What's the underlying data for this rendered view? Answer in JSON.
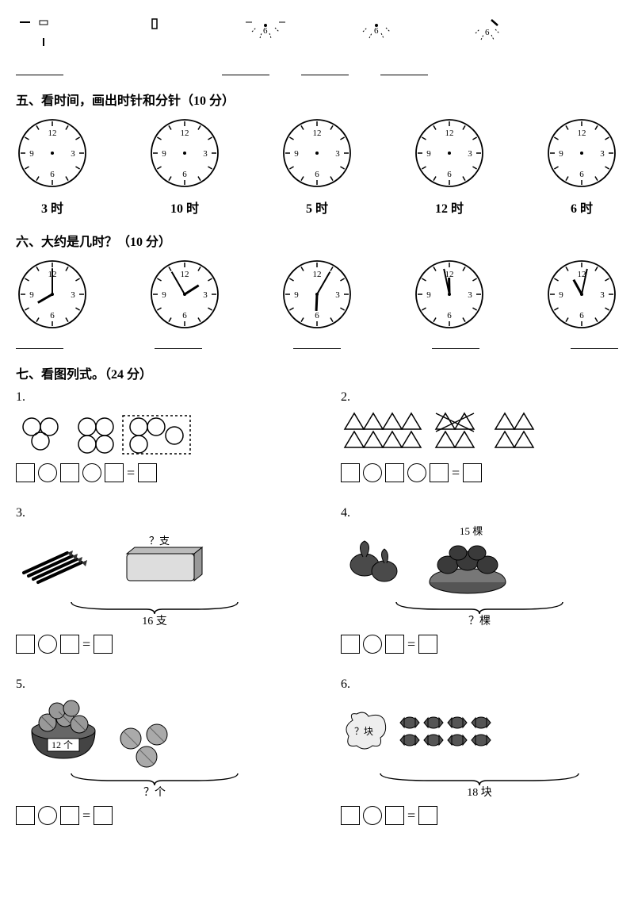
{
  "top_partial_labels": [
    "",
    "",
    "6",
    "6",
    "6"
  ],
  "section5": {
    "title": "五、看时间，画出时针和分针（10 分）",
    "times": [
      "3 时",
      "10 时",
      "5 时",
      "12 时",
      "6 时"
    ]
  },
  "section6": {
    "title": "六、大约是几时？（10 分）",
    "clocks": [
      {
        "hour": 8,
        "min": 0
      },
      {
        "hour": 1,
        "min": 55
      },
      {
        "hour": 6,
        "min": 5
      },
      {
        "hour": 11,
        "min": 58
      },
      {
        "hour": 11,
        "min": 2
      }
    ]
  },
  "section7": {
    "title": "七、看图列式。（24 分）",
    "q3": {
      "label_box": "？支",
      "brace": "16 支"
    },
    "q4": {
      "top": "15 棵",
      "brace": "？棵"
    },
    "q5": {
      "basket": "12 个",
      "brace": "？个"
    },
    "q6": {
      "bag": "？块",
      "brace": "18 块"
    }
  },
  "colors": {
    "ink": "#000000",
    "clock_face": "#ffffff",
    "shade": "#5a5a5a",
    "light": "#bfbfbf"
  }
}
